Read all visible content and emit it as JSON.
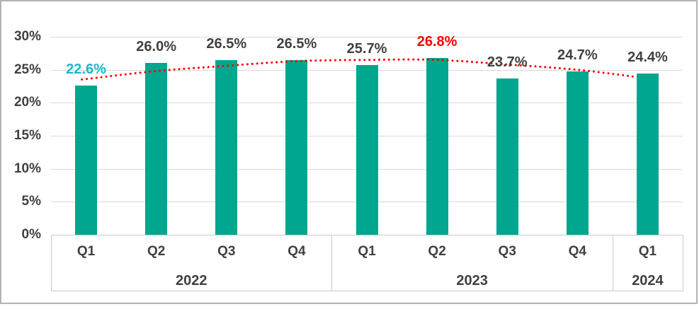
{
  "chart_data": {
    "type": "bar",
    "title": "",
    "categories": [
      "Q1",
      "Q2",
      "Q3",
      "Q4",
      "Q1",
      "Q2",
      "Q3",
      "Q4",
      "Q1"
    ],
    "year_groups": [
      {
        "label": "2022",
        "span": 4
      },
      {
        "label": "2023",
        "span": 4
      },
      {
        "label": "2024",
        "span": 1
      }
    ],
    "series": [
      {
        "name": "quarterly-percentage",
        "values": [
          22.6,
          26.0,
          26.5,
          26.5,
          25.7,
          26.8,
          23.7,
          24.7,
          24.4
        ]
      }
    ],
    "data_labels": [
      "22.6%",
      "26.0%",
      "26.5%",
      "26.5%",
      "25.7%",
      "26.8%",
      "23.7%",
      "24.7%",
      "24.4%"
    ],
    "data_label_colors": [
      "#1cb8c8",
      "#404040",
      "#404040",
      "#404040",
      "#404040",
      "#ff0000",
      "#404040",
      "#404040",
      "#404040"
    ],
    "trendline": {
      "style": "dotted",
      "color": "#ff0000",
      "values": [
        23.6,
        24.8,
        25.6,
        26.3,
        26.5,
        26.5,
        25.8,
        25.0,
        23.7
      ]
    },
    "ylim": [
      0,
      30
    ],
    "ytick_labels": [
      "0%",
      "5%",
      "10%",
      "15%",
      "20%",
      "25%",
      "30%"
    ],
    "xlabel": "",
    "ylabel": "",
    "legend": "none",
    "grid": "horizontal",
    "bar_color": "#00a68e",
    "gridline_color": "#d9d9d9",
    "axis_text_color": "#404040",
    "band_border_color": "#c9c9c9",
    "frame_border_color": "#b3b3b3"
  }
}
